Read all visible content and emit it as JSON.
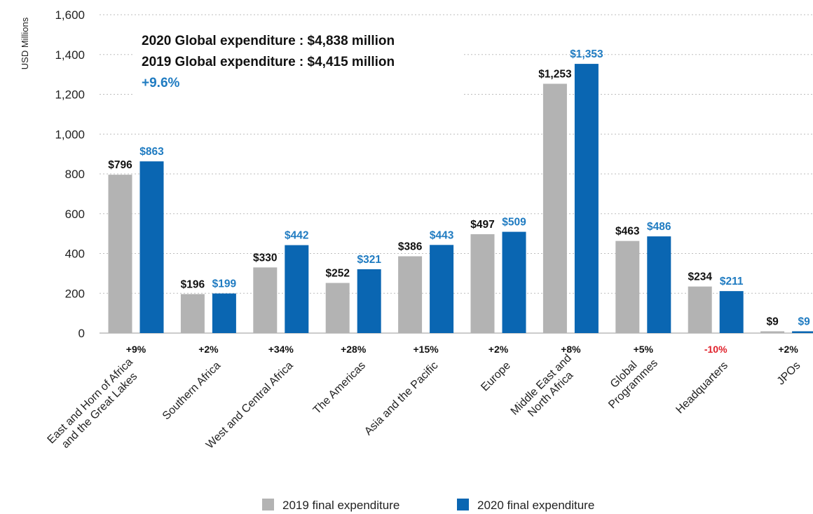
{
  "colors": {
    "series_2019": "#b3b3b3",
    "series_2020": "#0a66b2",
    "pct_positive": "#111111",
    "pct_negative": "#e0202a",
    "label_2019": "#111111",
    "label_2020": "#1f7bc1"
  },
  "annotation": {
    "line1_prefix": "2020 Global expenditure : ",
    "line1_value": "$4,838 million",
    "line2_prefix": "2019 Global expenditure : ",
    "line2_value": "$4,415 million",
    "change": "+9.6%"
  },
  "chart_data": {
    "type": "bar",
    "ylabel": "USD Millions",
    "ylim": [
      0,
      1600
    ],
    "yticks": [
      0,
      200,
      400,
      600,
      800,
      1000,
      1200,
      1400,
      1600
    ],
    "ytick_labels": [
      "0",
      "200",
      "400",
      "600",
      "800",
      "1,000",
      "1,200",
      "1,400",
      "1,600"
    ],
    "grid": "horizontal dashed",
    "legend_position": "bottom",
    "categories": [
      [
        "East and Horn of Africa",
        "and the Great Lakes"
      ],
      [
        "Southern Africa"
      ],
      [
        "West and Central Africa"
      ],
      [
        "The Americas"
      ],
      [
        "Asia and the Pacific"
      ],
      [
        "Europe"
      ],
      [
        "Middle East and",
        "North Africa"
      ],
      [
        "Global",
        "Programmes"
      ],
      [
        "Headquarters"
      ],
      [
        "JPOs"
      ]
    ],
    "series": [
      {
        "name": "2019 final expenditure",
        "values": [
          796,
          196,
          330,
          252,
          386,
          497,
          1253,
          463,
          234,
          9
        ],
        "labels": [
          "$796",
          "$196",
          "$330",
          "$252",
          "$386",
          "$497",
          "$1,253",
          "$463",
          "$234",
          "$9"
        ]
      },
      {
        "name": "2020 final expenditure",
        "values": [
          863,
          199,
          442,
          321,
          443,
          509,
          1353,
          486,
          211,
          9
        ],
        "labels": [
          "$863",
          "$199",
          "$442",
          "$321",
          "$443",
          "$509",
          "$1,353",
          "$486",
          "$211",
          "$9"
        ]
      }
    ],
    "change_labels": [
      "+9%",
      "+2%",
      "+34%",
      "+28%",
      "+15%",
      "+2%",
      "+8%",
      "+5%",
      "-10%",
      "+2%"
    ]
  }
}
